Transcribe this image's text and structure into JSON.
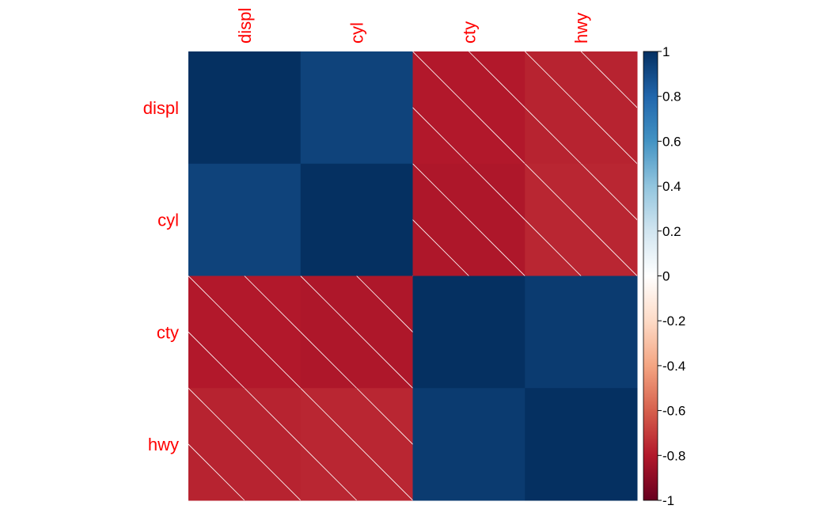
{
  "chart_data": {
    "type": "heatmap",
    "variables": [
      "displ",
      "cyl",
      "cty",
      "hwy"
    ],
    "values": [
      [
        1.0,
        0.93,
        -0.8,
        -0.77
      ],
      [
        0.93,
        1.0,
        -0.81,
        -0.76
      ],
      [
        -0.8,
        -0.81,
        1.0,
        0.96
      ],
      [
        -0.77,
        -0.76,
        0.96,
        1.0
      ]
    ],
    "colorbar": {
      "range": [
        -1,
        1
      ],
      "ticks": [
        "1",
        "0.8",
        "0.6",
        "0.4",
        "0.2",
        "0",
        "-0.2",
        "-0.4",
        "-0.6",
        "-0.8",
        "-1"
      ],
      "tick_values": [
        1,
        0.8,
        0.6,
        0.4,
        0.2,
        0,
        -0.2,
        -0.4,
        -0.6,
        -0.8,
        -1
      ]
    },
    "negative_hatching": true,
    "label_color": "#ff0000",
    "palette": [
      "#67001f",
      "#b2182b",
      "#d6604d",
      "#f4a582",
      "#fddbc7",
      "#ffffff",
      "#d1e5f0",
      "#92c5de",
      "#4393c3",
      "#2166ac",
      "#053061"
    ]
  }
}
